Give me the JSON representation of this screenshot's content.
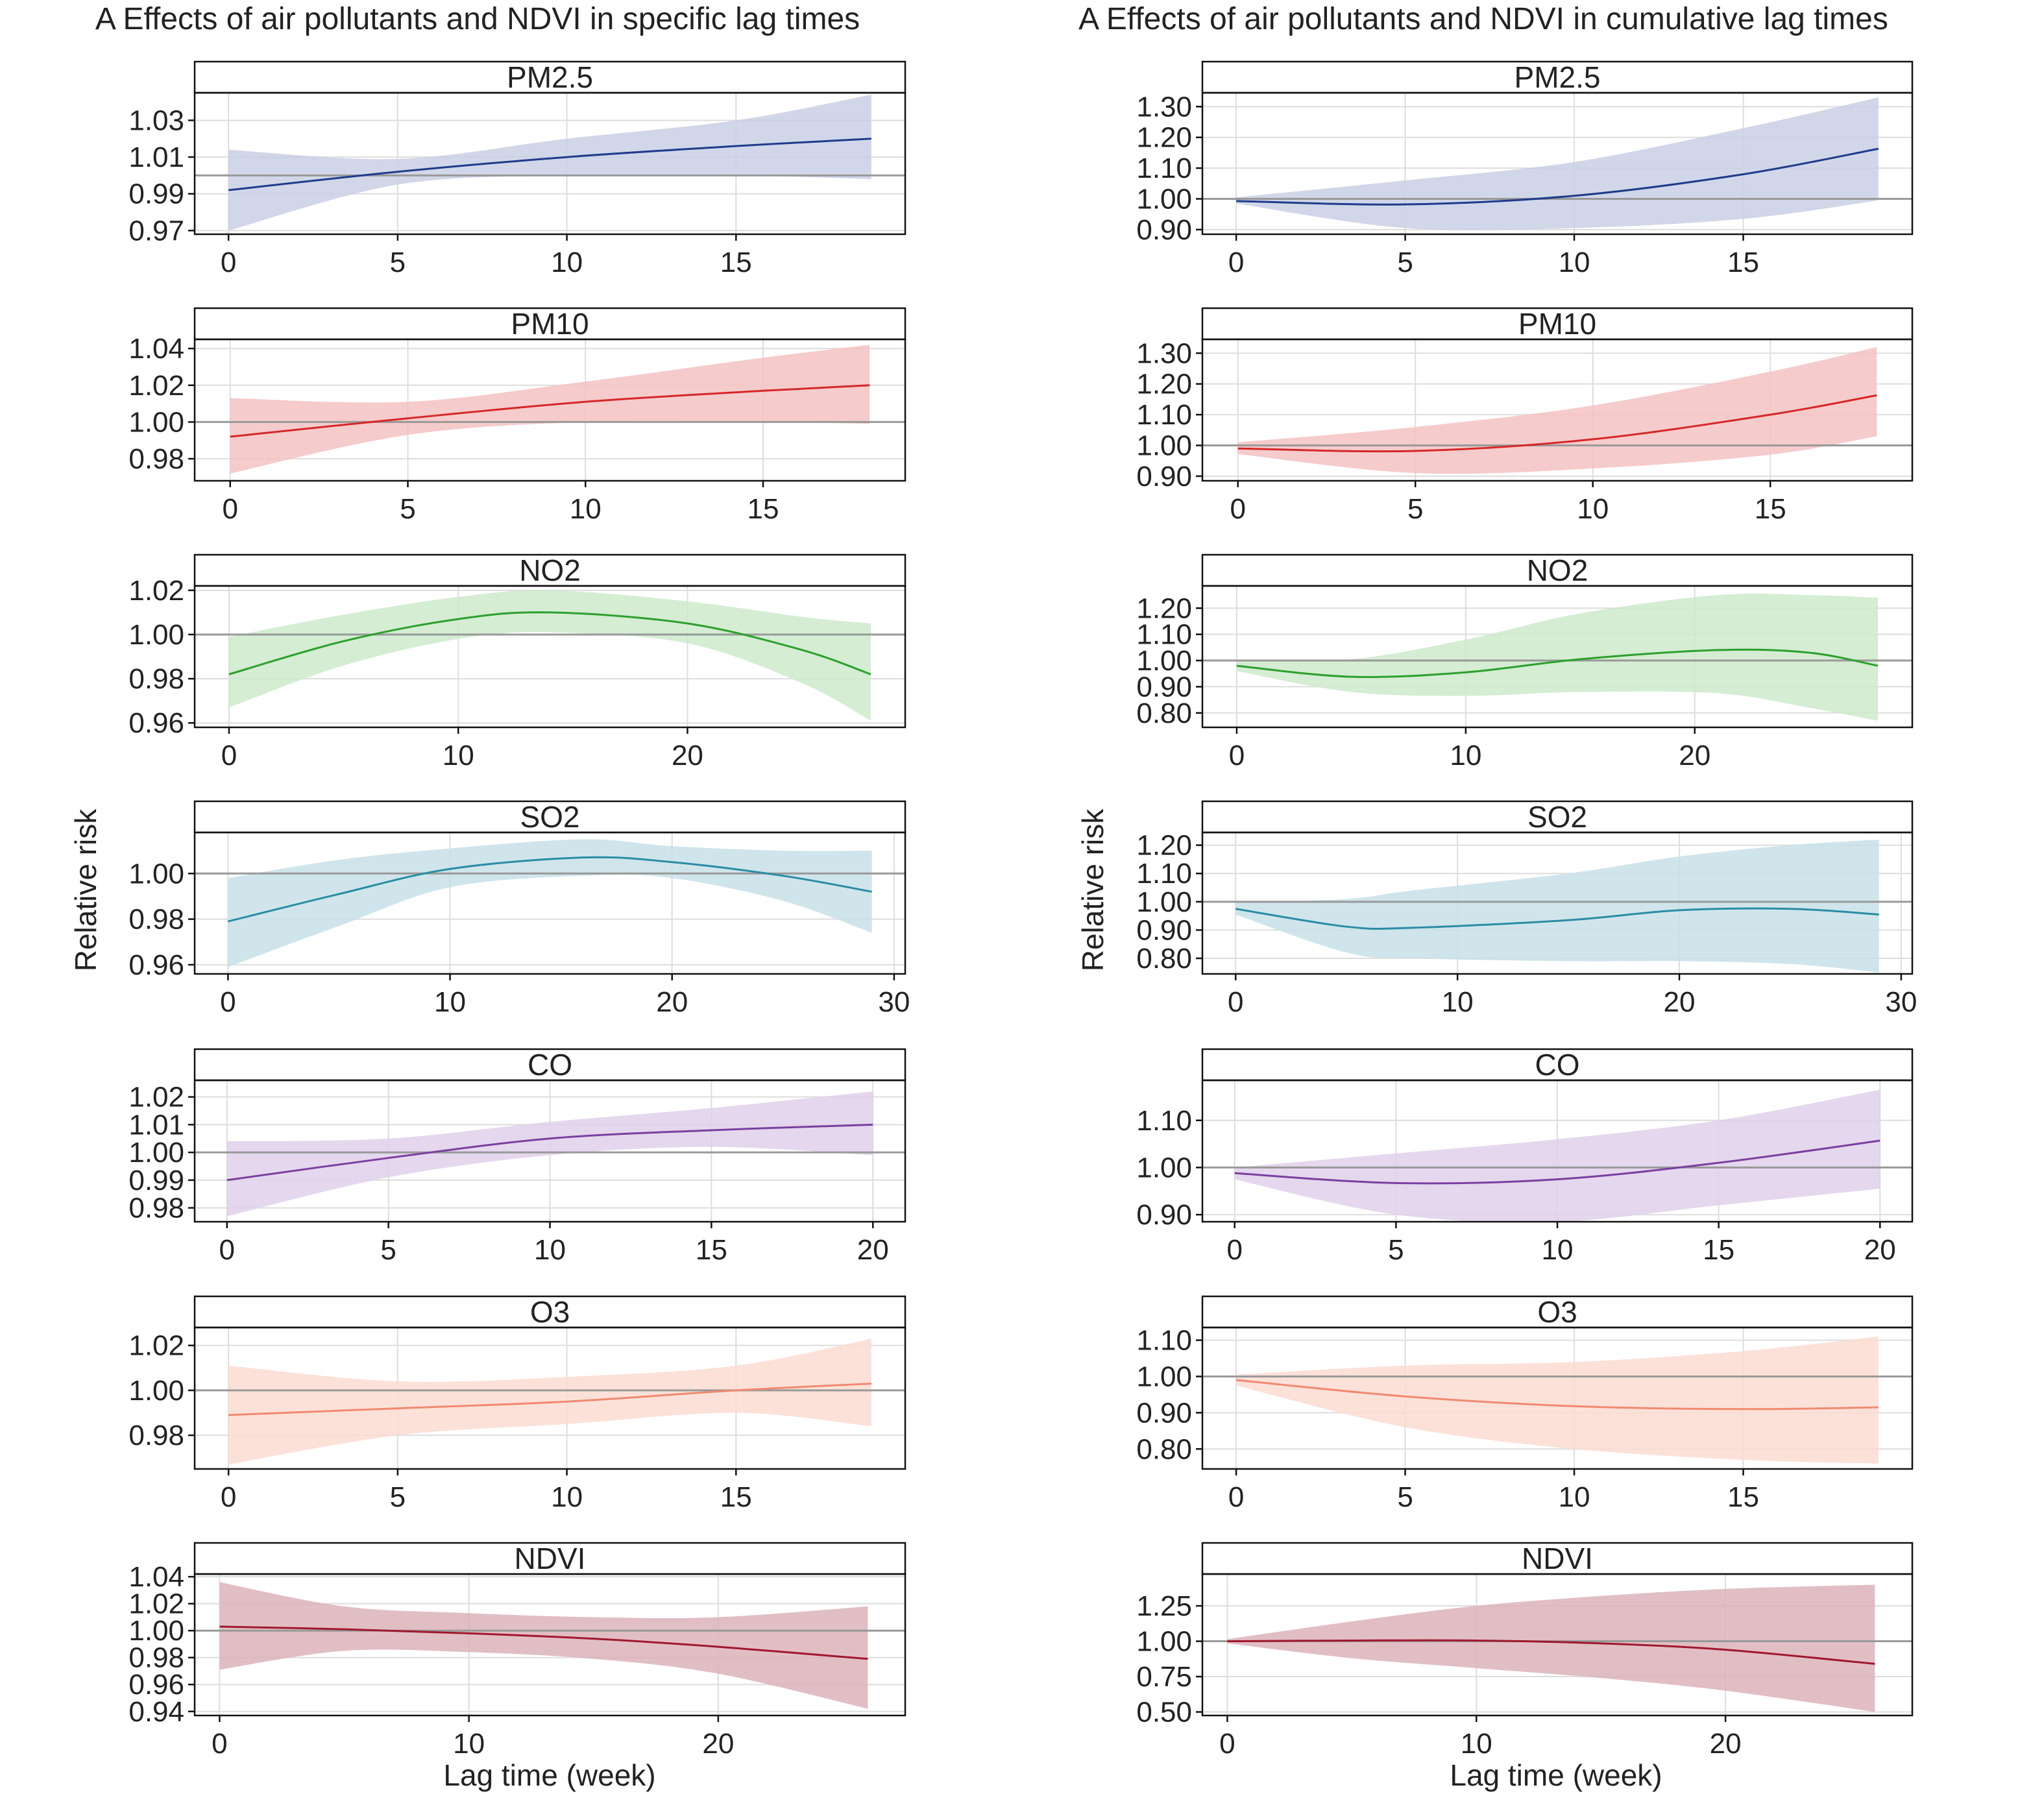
{
  "columns": [
    {
      "title": "A  Effects of air pollutants and NDVI in specific lag times",
      "ylabel": "Relative risk",
      "xlabel": "Lag time (week)"
    },
    {
      "title": "A  Effects of air pollutants and NDVI in cumulative lag times",
      "ylabel": "Relative risk",
      "xlabel": "Lag time (week)"
    }
  ],
  "chart_data": [
    {
      "type": "line",
      "column": 0,
      "row": 0,
      "title": "PM2.5",
      "color": "#1f3b8c",
      "band_color": "#c9d0e4",
      "xlim": [
        -1,
        20
      ],
      "ylim": [
        0.968,
        1.045
      ],
      "xticks": [
        0,
        5,
        10,
        15
      ],
      "yticks": [
        0.97,
        0.99,
        1.01,
        1.03
      ],
      "ytick_labels": [
        "0.97",
        "0.99",
        "1.01",
        "1.03"
      ],
      "reference": 1.0,
      "x": [
        0,
        5,
        10,
        15,
        19
      ],
      "y": [
        0.992,
        1.002,
        1.01,
        1.016,
        1.02
      ],
      "lower": [
        0.97,
        0.995,
        1.0,
        1.0,
        0.998
      ],
      "upper": [
        1.014,
        1.009,
        1.02,
        1.03,
        1.044
      ]
    },
    {
      "type": "line",
      "column": 0,
      "row": 1,
      "title": "PM10",
      "color": "#d62728",
      "band_color": "#f4c2c2",
      "xlim": [
        -1,
        19
      ],
      "ylim": [
        0.968,
        1.045
      ],
      "xticks": [
        0,
        5,
        10,
        15
      ],
      "yticks": [
        0.98,
        1.0,
        1.02,
        1.04
      ],
      "ytick_labels": [
        "0.98",
        "1.00",
        "1.02",
        "1.04"
      ],
      "reference": 1.0,
      "x": [
        0,
        5,
        10,
        15,
        18
      ],
      "y": [
        0.992,
        1.002,
        1.011,
        1.017,
        1.02
      ],
      "lower": [
        0.972,
        0.993,
        1.0,
        1.0,
        0.999
      ],
      "upper": [
        1.013,
        1.011,
        1.022,
        1.035,
        1.042
      ]
    },
    {
      "type": "line",
      "column": 0,
      "row": 2,
      "title": "NO2",
      "color": "#2ca02c",
      "band_color": "#cdeacb",
      "xlim": [
        -1.5,
        29.5
      ],
      "ylim": [
        0.958,
        1.022
      ],
      "xticks": [
        0,
        10,
        20
      ],
      "yticks": [
        0.96,
        0.98,
        1.0,
        1.02
      ],
      "ytick_labels": [
        "0.96",
        "0.98",
        "1.00",
        "1.02"
      ],
      "reference": 1.0,
      "x": [
        0,
        5,
        10,
        14,
        20,
        25,
        28
      ],
      "y": [
        0.982,
        0.997,
        1.007,
        1.01,
        1.005,
        0.993,
        0.982
      ],
      "lower": [
        0.967,
        0.986,
        0.998,
        1.001,
        0.996,
        0.978,
        0.961
      ],
      "upper": [
        0.999,
        1.009,
        1.017,
        1.02,
        1.015,
        1.008,
        1.005
      ]
    },
    {
      "type": "line",
      "column": 0,
      "row": 3,
      "title": "SO2",
      "color": "#2a8ca5",
      "band_color": "#c7e0e8",
      "xlim": [
        -1.5,
        30.5
      ],
      "ylim": [
        0.956,
        1.018
      ],
      "xticks": [
        0,
        10,
        20,
        30
      ],
      "yticks": [
        0.96,
        0.98,
        1.0
      ],
      "ytick_labels": [
        "0.96",
        "0.98",
        "1.00"
      ],
      "reference": 1.0,
      "x": [
        0,
        5,
        10,
        16,
        20,
        25,
        29
      ],
      "y": [
        0.979,
        0.991,
        1.002,
        1.007,
        1.005,
        0.999,
        0.992
      ],
      "lower": [
        0.959,
        0.977,
        0.994,
        0.999,
        0.998,
        0.988,
        0.974
      ],
      "upper": [
        0.998,
        1.006,
        1.011,
        1.015,
        1.012,
        1.01,
        1.01
      ]
    },
    {
      "type": "line",
      "column": 0,
      "row": 4,
      "title": "CO",
      "color": "#7b3fa0",
      "band_color": "#e0d0ea",
      "xlim": [
        -1,
        21
      ],
      "ylim": [
        0.975,
        1.026
      ],
      "xticks": [
        0,
        5,
        10,
        15,
        20
      ],
      "yticks": [
        0.98,
        0.99,
        1.0,
        1.01,
        1.02
      ],
      "ytick_labels": [
        "0.98",
        "0.99",
        "1.00",
        "1.01",
        "1.02"
      ],
      "reference": 1.0,
      "x": [
        0,
        5,
        10,
        15,
        20
      ],
      "y": [
        0.99,
        0.998,
        1.005,
        1.008,
        1.01
      ],
      "lower": [
        0.977,
        0.991,
        0.999,
        1.002,
        0.999
      ],
      "upper": [
        1.004,
        1.005,
        1.011,
        1.016,
        1.022
      ]
    },
    {
      "type": "line",
      "column": 0,
      "row": 5,
      "title": "O3",
      "color": "#f08a70",
      "band_color": "#fcdcd2",
      "xlim": [
        -1,
        20
      ],
      "ylim": [
        0.965,
        1.028
      ],
      "xticks": [
        0,
        5,
        10,
        15
      ],
      "yticks": [
        0.98,
        1.0,
        1.02
      ],
      "ytick_labels": [
        "0.98",
        "1.00",
        "1.02"
      ],
      "reference": 1.0,
      "x": [
        0,
        5,
        10,
        15,
        19
      ],
      "y": [
        0.989,
        0.992,
        0.995,
        1.0,
        1.003
      ],
      "lower": [
        0.967,
        0.98,
        0.985,
        0.99,
        0.984
      ],
      "upper": [
        1.011,
        1.004,
        1.006,
        1.011,
        1.023
      ]
    },
    {
      "type": "line",
      "column": 0,
      "row": 6,
      "title": "NDVI",
      "color": "#a0182e",
      "band_color": "#dcb3ba",
      "xlim": [
        -1,
        27.5
      ],
      "ylim": [
        0.937,
        1.042
      ],
      "xticks": [
        0,
        10,
        20
      ],
      "yticks": [
        0.94,
        0.96,
        0.98,
        1.0,
        1.02,
        1.04
      ],
      "ytick_labels": [
        "0.94",
        "0.96",
        "0.98",
        "1.00",
        "1.02",
        "1.04"
      ],
      "reference": 1.0,
      "x": [
        0,
        5,
        10,
        15,
        20,
        26
      ],
      "y": [
        1.003,
        1.001,
        0.998,
        0.994,
        0.988,
        0.979
      ],
      "lower": [
        0.971,
        0.985,
        0.984,
        0.979,
        0.968,
        0.942
      ],
      "upper": [
        1.036,
        1.018,
        1.013,
        1.01,
        1.01,
        1.018
      ]
    },
    {
      "type": "line",
      "column": 1,
      "row": 0,
      "title": "PM2.5",
      "color": "#1f3b8c",
      "band_color": "#c9d0e4",
      "xlim": [
        -1,
        20
      ],
      "ylim": [
        0.885,
        1.345
      ],
      "xticks": [
        0,
        5,
        10,
        15
      ],
      "yticks": [
        0.9,
        1.0,
        1.1,
        1.2,
        1.3
      ],
      "ytick_labels": [
        "0.90",
        "1.00",
        "1.10",
        "1.20",
        "1.30"
      ],
      "reference": 1.0,
      "x": [
        0,
        5,
        10,
        15,
        19
      ],
      "y": [
        0.993,
        0.982,
        1.01,
        1.08,
        1.163
      ],
      "lower": [
        0.985,
        0.905,
        0.905,
        0.935,
        0.995
      ],
      "upper": [
        1.005,
        1.06,
        1.12,
        1.23,
        1.33
      ]
    },
    {
      "type": "line",
      "column": 1,
      "row": 1,
      "title": "PM10",
      "color": "#d62728",
      "band_color": "#f4c2c2",
      "xlim": [
        -1,
        19
      ],
      "ylim": [
        0.885,
        1.345
      ],
      "xticks": [
        0,
        5,
        10,
        15
      ],
      "yticks": [
        0.9,
        1.0,
        1.1,
        1.2,
        1.3
      ],
      "ytick_labels": [
        "0.90",
        "1.00",
        "1.10",
        "1.20",
        "1.30"
      ],
      "reference": 1.0,
      "x": [
        0,
        5,
        10,
        15,
        18
      ],
      "y": [
        0.99,
        0.982,
        1.02,
        1.1,
        1.163
      ],
      "lower": [
        0.972,
        0.91,
        0.925,
        0.97,
        1.03
      ],
      "upper": [
        1.01,
        1.06,
        1.13,
        1.24,
        1.32
      ]
    },
    {
      "type": "line",
      "column": 1,
      "row": 2,
      "title": "NO2",
      "color": "#2ca02c",
      "band_color": "#cdeacb",
      "xlim": [
        -1.5,
        29.5
      ],
      "ylim": [
        0.745,
        1.285
      ],
      "xticks": [
        0,
        10,
        20
      ],
      "yticks": [
        0.8,
        0.9,
        1.0,
        1.1,
        1.2
      ],
      "ytick_labels": [
        "0.80",
        "0.90",
        "1.00",
        "1.10",
        "1.20"
      ],
      "reference": 1.0,
      "x": [
        0,
        5,
        10,
        15,
        21,
        25,
        28
      ],
      "y": [
        0.98,
        0.938,
        0.955,
        1.005,
        1.04,
        1.03,
        0.98
      ],
      "lower": [
        0.96,
        0.88,
        0.865,
        0.88,
        0.875,
        0.82,
        0.77
      ],
      "upper": [
        1.0,
        1.005,
        1.08,
        1.18,
        1.25,
        1.25,
        1.24
      ]
    },
    {
      "type": "line",
      "column": 1,
      "row": 3,
      "title": "SO2",
      "color": "#2a8ca5",
      "band_color": "#c7e0e8",
      "xlim": [
        -1.5,
        30.5
      ],
      "ylim": [
        0.745,
        1.245
      ],
      "xticks": [
        0,
        10,
        20,
        30
      ],
      "yticks": [
        0.8,
        0.9,
        1.0,
        1.1,
        1.2
      ],
      "ytick_labels": [
        "0.80",
        "0.90",
        "1.00",
        "1.10",
        "1.20"
      ],
      "reference": 1.0,
      "x": [
        0,
        5,
        8,
        15,
        20,
        25,
        29
      ],
      "y": [
        0.975,
        0.912,
        0.908,
        0.935,
        0.97,
        0.975,
        0.955
      ],
      "lower": [
        0.955,
        0.82,
        0.8,
        0.79,
        0.79,
        0.78,
        0.75
      ],
      "upper": [
        0.998,
        1.01,
        1.04,
        1.1,
        1.16,
        1.2,
        1.22
      ]
    },
    {
      "type": "line",
      "column": 1,
      "row": 4,
      "title": "CO",
      "color": "#7b3fa0",
      "band_color": "#e0d0ea",
      "xlim": [
        -1,
        21
      ],
      "ylim": [
        0.885,
        1.185
      ],
      "xticks": [
        0,
        5,
        10,
        15,
        20
      ],
      "yticks": [
        0.9,
        1.0,
        1.1
      ],
      "ytick_labels": [
        "0.90",
        "1.00",
        "1.10"
      ],
      "reference": 1.0,
      "x": [
        0,
        5,
        10,
        15,
        20
      ],
      "y": [
        0.988,
        0.967,
        0.975,
        1.01,
        1.057
      ],
      "lower": [
        0.975,
        0.9,
        0.885,
        0.92,
        0.955
      ],
      "upper": [
        1.0,
        1.03,
        1.06,
        1.1,
        1.165
      ]
    },
    {
      "type": "line",
      "column": 1,
      "row": 5,
      "title": "O3",
      "color": "#f08a70",
      "band_color": "#fcdcd2",
      "xlim": [
        -1,
        20
      ],
      "ylim": [
        0.745,
        1.135
      ],
      "xticks": [
        0,
        5,
        10,
        15
      ],
      "yticks": [
        0.8,
        0.9,
        1.0,
        1.1
      ],
      "ytick_labels": [
        "0.80",
        "0.90",
        "1.00",
        "1.10"
      ],
      "reference": 1.0,
      "x": [
        0,
        5,
        10,
        15,
        19
      ],
      "y": [
        0.99,
        0.945,
        0.918,
        0.91,
        0.915
      ],
      "lower": [
        0.975,
        0.86,
        0.8,
        0.77,
        0.76
      ],
      "upper": [
        1.005,
        1.03,
        1.04,
        1.07,
        1.11
      ]
    },
    {
      "type": "line",
      "column": 1,
      "row": 6,
      "title": "NDVI",
      "color": "#a0182e",
      "band_color": "#dcb3ba",
      "xlim": [
        -1,
        27.5
      ],
      "ylim": [
        0.475,
        1.475
      ],
      "xticks": [
        0,
        10,
        20
      ],
      "yticks": [
        0.5,
        0.75,
        1.0,
        1.25
      ],
      "ytick_labels": [
        "0.50",
        "0.75",
        "1.00",
        "1.25"
      ],
      "reference": 1.0,
      "x": [
        0,
        5,
        10,
        15,
        20,
        26
      ],
      "y": [
        1.0,
        1.005,
        1.005,
        0.985,
        0.94,
        0.84
      ],
      "lower": [
        0.985,
        0.88,
        0.81,
        0.74,
        0.65,
        0.5
      ],
      "upper": [
        1.015,
        1.14,
        1.25,
        1.32,
        1.37,
        1.4
      ]
    }
  ]
}
